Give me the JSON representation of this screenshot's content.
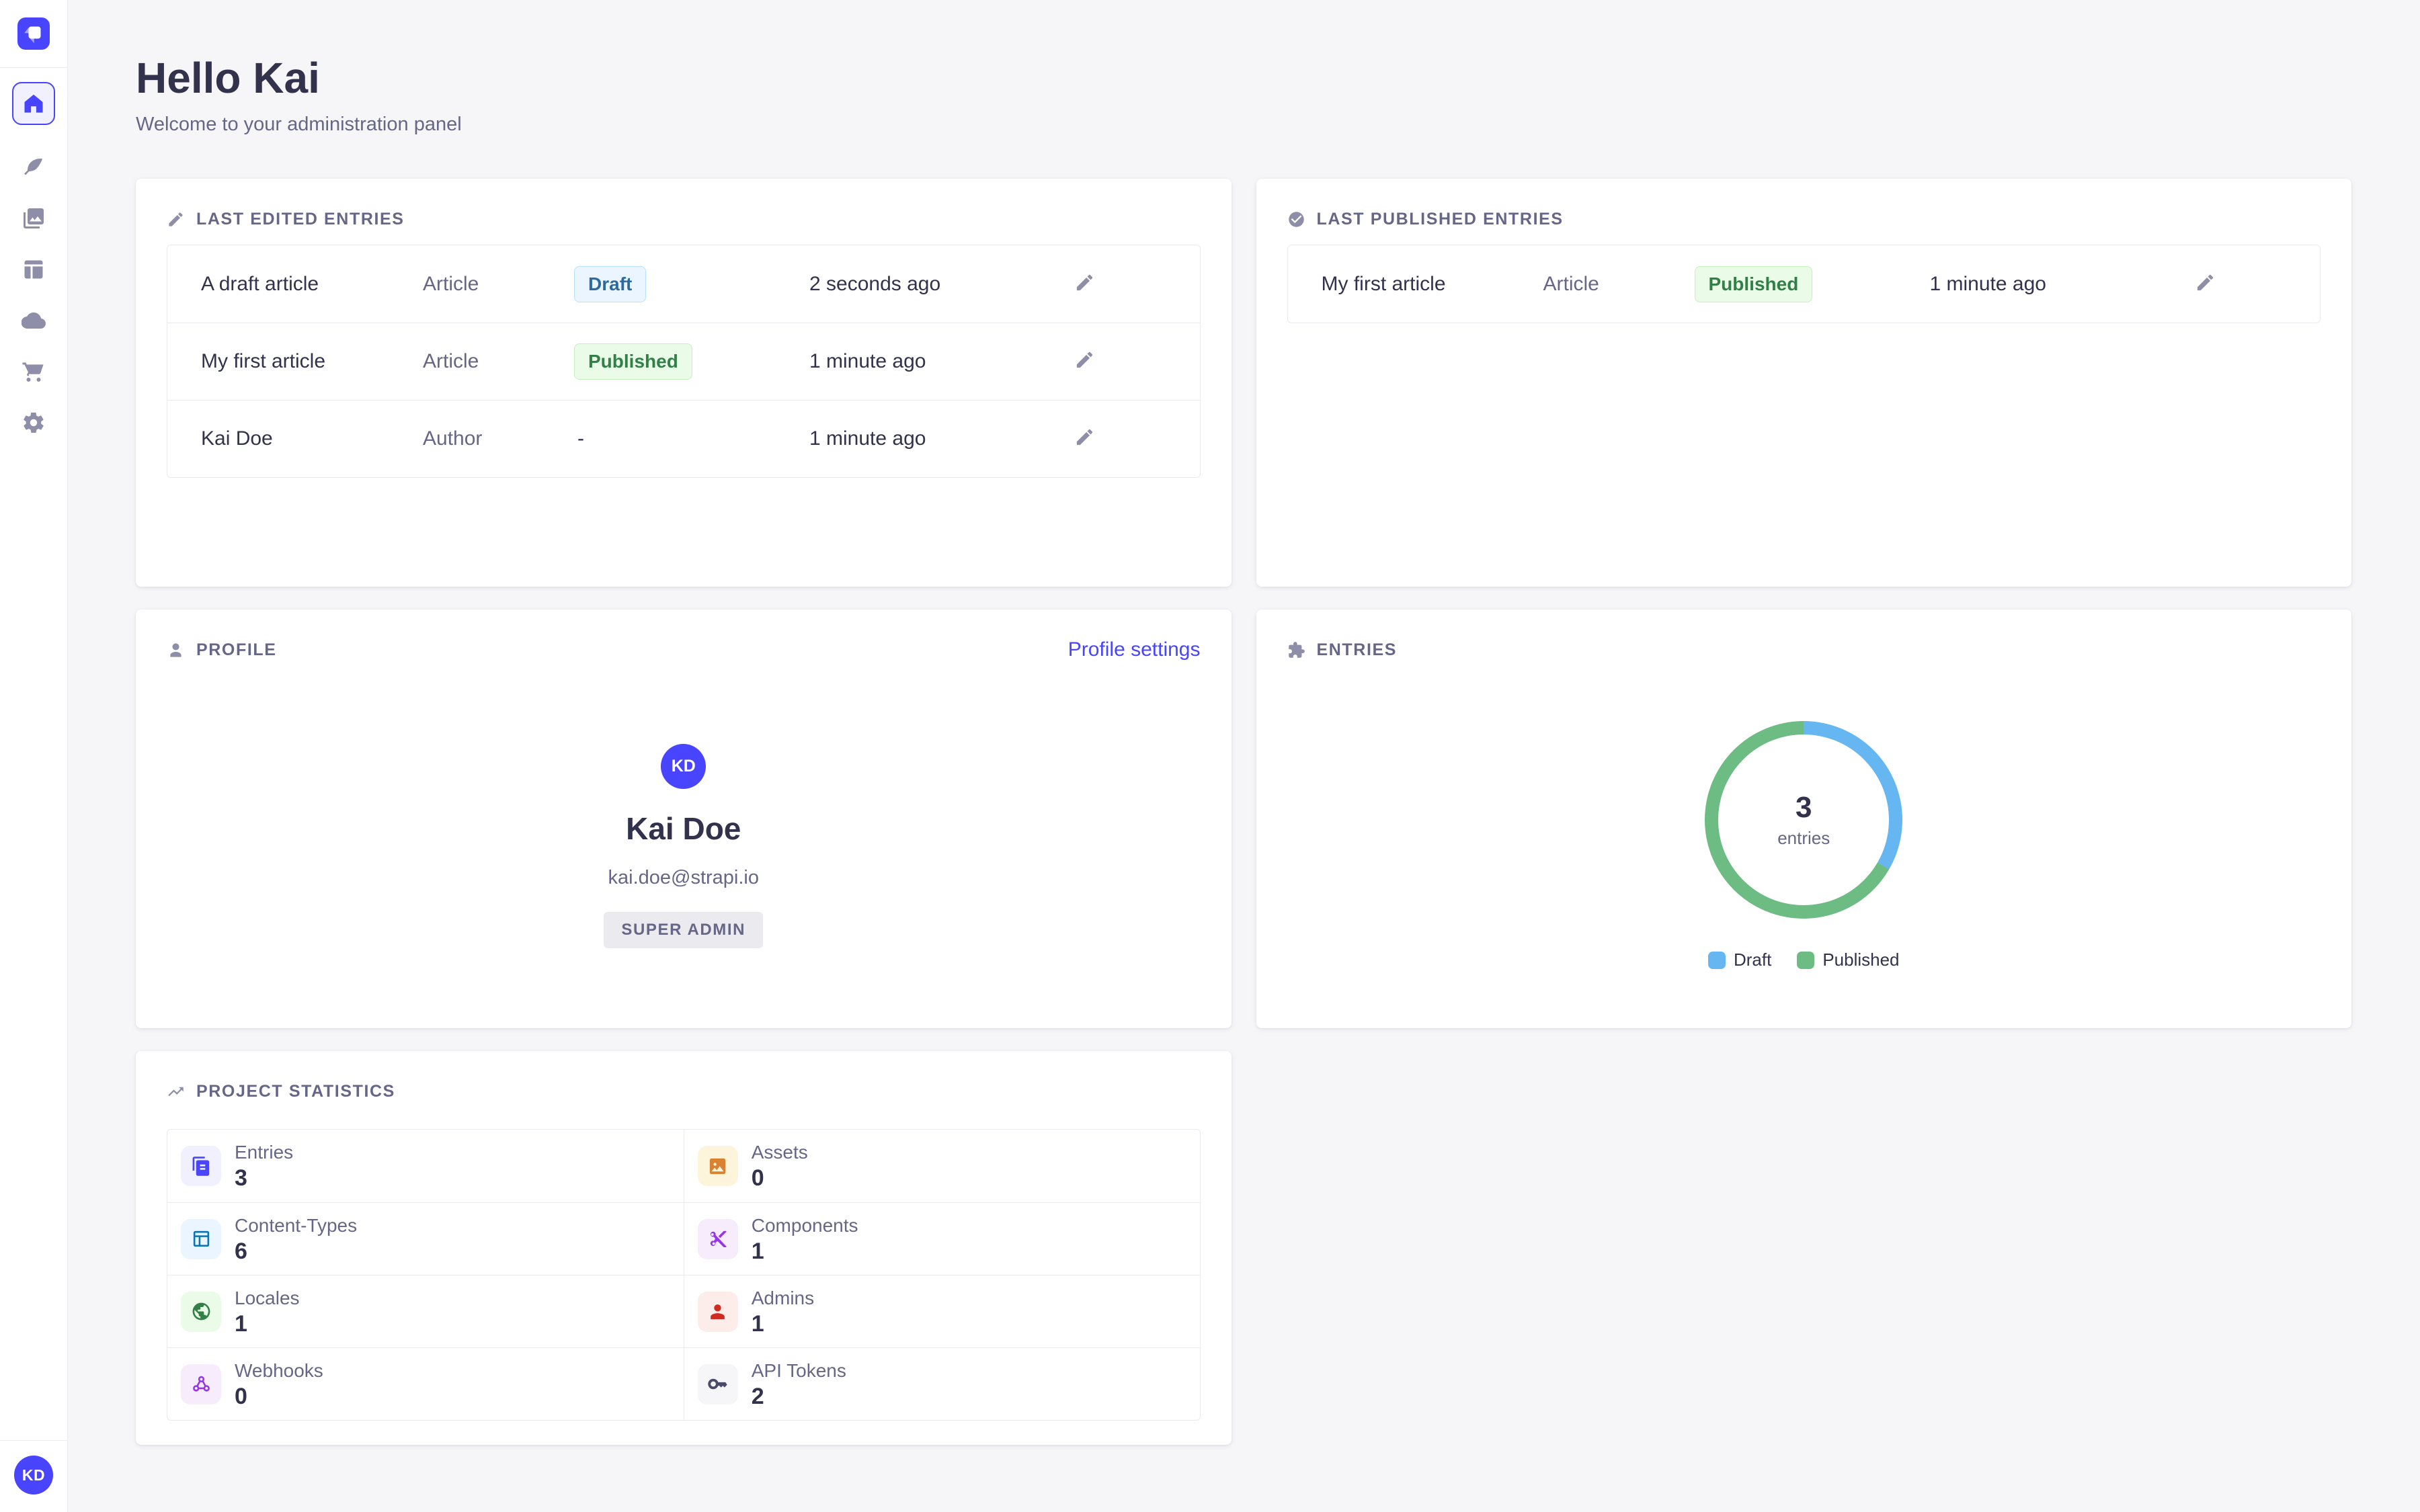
{
  "app": {
    "greeting": "Hello Kai",
    "subtitle": "Welcome to your administration panel"
  },
  "colors": {
    "accent": "#4945ff",
    "page_background": "#f6f6f9",
    "border": "#eaeaef",
    "text_primary": "#32324d",
    "text_secondary": "#666687",
    "icon_gray": "#8e8ea9",
    "draft_badge": {
      "bg": "#eaf5ff",
      "border": "#b8e1ff",
      "text": "#2d6b9e"
    },
    "published_badge": {
      "bg": "#eafbe7",
      "border": "#c6f0c2",
      "text": "#328048"
    },
    "chart_draft": "#66b7f1",
    "chart_published": "#6dbc83"
  },
  "sidebar": {
    "logo_icon": "strapi-logo-icon",
    "items": [
      {
        "icon": "home-icon",
        "active": true
      },
      {
        "icon": "feather-icon",
        "active": false
      },
      {
        "icon": "images-icon",
        "active": false
      },
      {
        "icon": "layout-icon",
        "active": false
      },
      {
        "icon": "cloud-icon",
        "active": false
      },
      {
        "icon": "cart-icon",
        "active": false
      },
      {
        "icon": "gear-icon",
        "active": false
      }
    ],
    "avatar_initials": "KD"
  },
  "cards": {
    "last_edited": {
      "label": "LAST EDITED ENTRIES",
      "icon": "pencil-icon",
      "rows": [
        {
          "title": "A draft article",
          "type": "Article",
          "status": "Draft",
          "variant": "draft",
          "time": "2 seconds ago"
        },
        {
          "title": "My first article",
          "type": "Article",
          "status": "Published",
          "variant": "published",
          "time": "1 minute ago"
        },
        {
          "title": "Kai Doe",
          "type": "Author",
          "status": "-",
          "variant": "none",
          "time": "1 minute ago"
        }
      ]
    },
    "last_published": {
      "label": "LAST PUBLISHED ENTRIES",
      "icon": "check-circle-icon",
      "rows": [
        {
          "title": "My first article",
          "type": "Article",
          "status": "Published",
          "variant": "published",
          "time": "1 minute ago"
        }
      ]
    },
    "profile": {
      "label": "PROFILE",
      "icon": "user-icon",
      "settings_link": "Profile settings",
      "avatar_initials": "KD",
      "name": "Kai Doe",
      "email": "kai.doe@strapi.io",
      "role": "SUPER ADMIN"
    },
    "entries": {
      "label": "ENTRIES",
      "icon": "puzzle-icon",
      "center_value": "3",
      "center_label": "entries",
      "legend": [
        {
          "label": "Draft",
          "color": "#66b7f1"
        },
        {
          "label": "Published",
          "color": "#6dbc83"
        }
      ]
    },
    "stats": {
      "label": "PROJECT STATISTICS",
      "icon": "trend-up-icon",
      "items": [
        {
          "label": "Entries",
          "value": "3",
          "icon": "files-icon",
          "tile_bg": "#f0f0ff",
          "icon_color": "#4945ff"
        },
        {
          "label": "Assets",
          "value": "0",
          "icon": "image-icon",
          "tile_bg": "#fdf4dc",
          "icon_color": "#d9822f"
        },
        {
          "label": "Content-Types",
          "value": "6",
          "icon": "grid-icon",
          "tile_bg": "#eaf5ff",
          "icon_color": "#0c75af"
        },
        {
          "label": "Components",
          "value": "1",
          "icon": "scissors-icon",
          "tile_bg": "#f6ecfc",
          "icon_color": "#9736e8"
        },
        {
          "label": "Locales",
          "value": "1",
          "icon": "globe-icon",
          "tile_bg": "#eafbe7",
          "icon_color": "#328048"
        },
        {
          "label": "Admins",
          "value": "1",
          "icon": "person-icon",
          "tile_bg": "#fcecea",
          "icon_color": "#d02b20"
        },
        {
          "label": "Webhooks",
          "value": "0",
          "icon": "webhook-icon",
          "tile_bg": "#f6ecfc",
          "icon_color": "#9736e8"
        },
        {
          "label": "API Tokens",
          "value": "2",
          "icon": "key-icon",
          "tile_bg": "#f6f6f9",
          "icon_color": "#4a4a6a"
        }
      ]
    }
  },
  "chart_data": {
    "type": "pie",
    "donut": true,
    "title": "ENTRIES",
    "categories": [
      "Draft",
      "Published"
    ],
    "values": [
      1,
      2
    ],
    "total": 3,
    "colors": [
      "#66b7f1",
      "#6dbc83"
    ],
    "center_text": "3 entries",
    "legend_position": "bottom"
  }
}
